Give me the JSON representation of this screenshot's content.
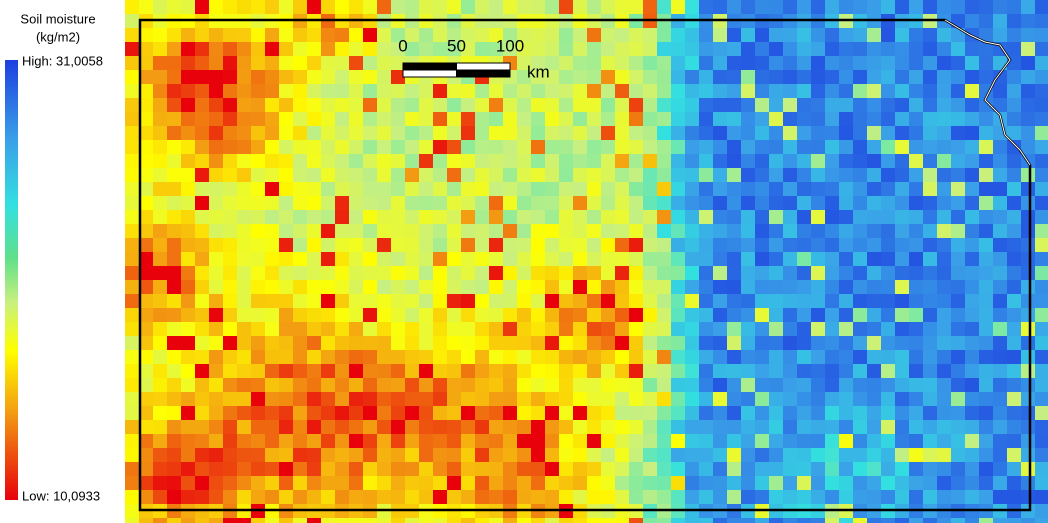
{
  "legend": {
    "title": "Soil moisture",
    "unit": "(kg/m2)",
    "high": "High: 31,0058",
    "low": "Low: 10,0933"
  },
  "scale_bar": {
    "ticks": [
      0,
      50,
      100
    ],
    "unit": "km"
  }
}
